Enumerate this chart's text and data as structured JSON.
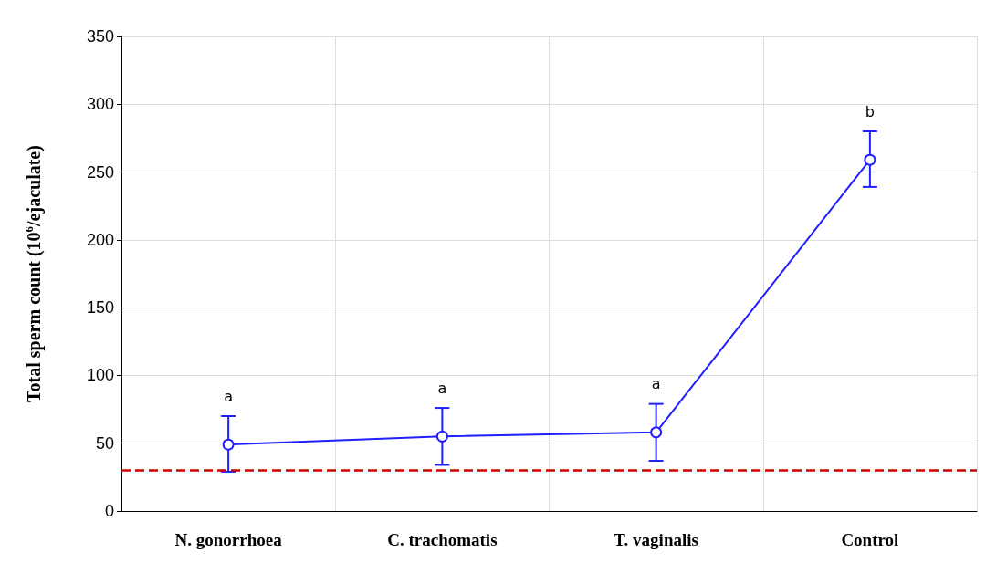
{
  "chart_data": {
    "type": "line",
    "ylabel": "Total sperm count (10$^{6}$/ejaculate)",
    "categories": [
      "N. gonorrhoea",
      "C. trachomatis",
      "T. vaginalis",
      "Control"
    ],
    "series": [
      {
        "color": "#1f1fff",
        "values": [
          49,
          55,
          58,
          259
        ],
        "errors": [
          [
            29,
            70
          ],
          [
            34,
            76
          ],
          [
            37,
            79
          ],
          [
            239,
            280
          ]
        ]
      }
    ],
    "ylim": [
      0,
      350
    ],
    "yticks": [
      0,
      50,
      100,
      150,
      200,
      250,
      300,
      350
    ],
    "grid": true,
    "marker": "circle",
    "line_style": "solid",
    "ref_lines": [
      {
        "axis": "y",
        "value": 30,
        "color": "#cc0000",
        "line_style": "dashed"
      }
    ],
    "annotations": [
      "a",
      "a",
      "a",
      "b"
    ]
  }
}
